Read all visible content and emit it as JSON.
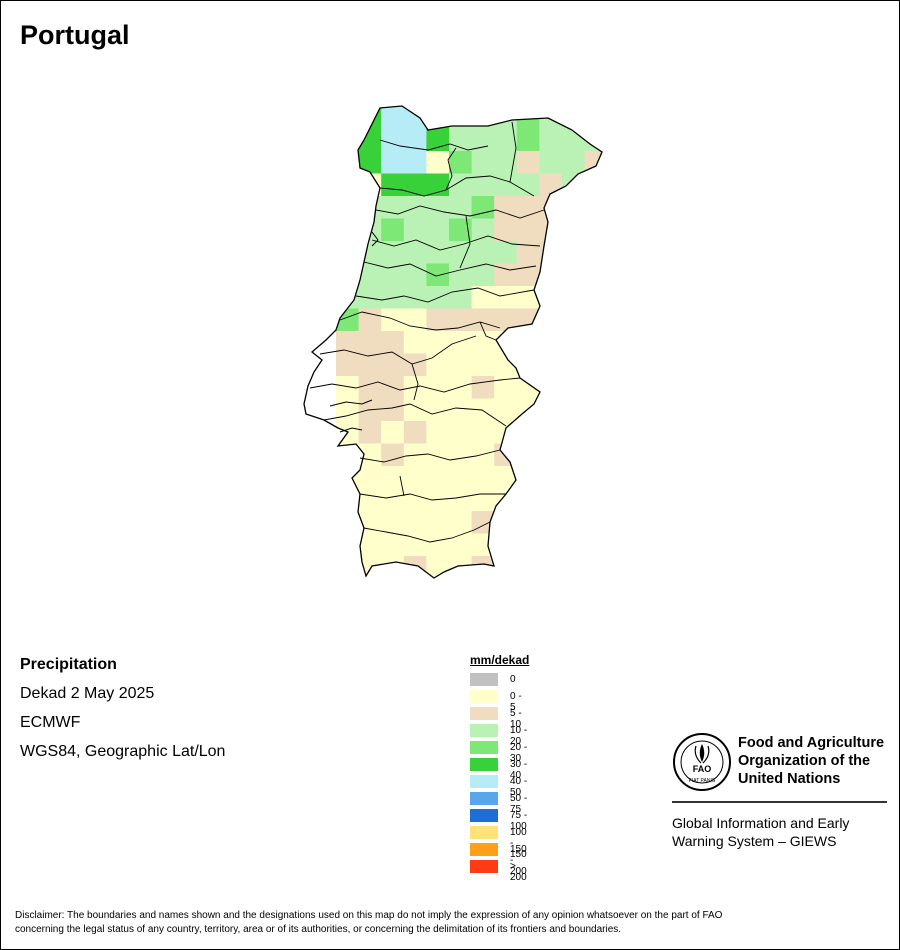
{
  "title": "Portugal",
  "info": {
    "variable": "Precipitation",
    "period": "Dekad 2 May 2025",
    "source": "ECMWF",
    "projection": "WGS84, Geographic Lat/Lon"
  },
  "legend": {
    "title": "mm/dekad",
    "items": [
      {
        "label": "0",
        "color": "#c0c0c0"
      },
      {
        "label": "0 - 5",
        "color": "#ffffcc"
      },
      {
        "label": "5 - 10",
        "color": "#f0dcbe"
      },
      {
        "label": "10 - 20",
        "color": "#b9f2b4"
      },
      {
        "label": "20 - 30",
        "color": "#7de876"
      },
      {
        "label": "30 - 40",
        "color": "#38d13a"
      },
      {
        "label": "40 - 50",
        "color": "#b6ecf5"
      },
      {
        "label": "50 - 75",
        "color": "#5aa6ea"
      },
      {
        "label": "75 - 100",
        "color": "#1e6ed8"
      },
      {
        "label": "100 - 150",
        "color": "#ffe27a"
      },
      {
        "label": "150 - 200",
        "color": "#ff9f1a"
      },
      {
        "label": "> 200",
        "color": "#ff3c14"
      }
    ]
  },
  "organization": {
    "line1": "Food and Agriculture",
    "line2": "Organization of the",
    "line3": "United Nations",
    "logo_text": "FAO",
    "logo_motto": "FIAT PANIS"
  },
  "giews": {
    "line1": "Global Information and Early",
    "line2": "Warning System – GIEWS"
  },
  "disclaimer": {
    "line1": "Disclaimer: The boundaries and names shown and the designations used on this map do not imply the expression of any opinion whatsoever on the part of FAO",
    "line2": "concerning the legal status of any country, territory, area or of its authorities, or concerning the delimitation of its frontiers and boundaries."
  }
}
